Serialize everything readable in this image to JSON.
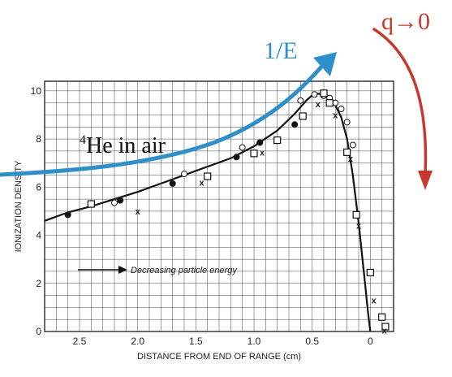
{
  "chart_data": {
    "type": "scatter",
    "xlabel": "DISTANCE FROM END OF RANGE (cm)",
    "ylabel": "IONIZATION DENSITY",
    "x_reversed": true,
    "xlim": [
      2.8,
      -0.2
    ],
    "ylim": [
      0,
      10.4
    ],
    "x_ticks": [
      {
        "v": 2.5,
        "label": "2.5"
      },
      {
        "v": 2.0,
        "label": "2.0"
      },
      {
        "v": 1.5,
        "label": "1.5"
      },
      {
        "v": 1.0,
        "label": "1.0"
      },
      {
        "v": 0.5,
        "label": "0.5"
      },
      {
        "v": 0.0,
        "label": "0"
      }
    ],
    "y_ticks": [
      {
        "v": 0,
        "label": "0"
      },
      {
        "v": 2,
        "label": "2"
      },
      {
        "v": 4,
        "label": "4"
      },
      {
        "v": 6,
        "label": "6"
      },
      {
        "v": 8,
        "label": "8"
      },
      {
        "v": 10,
        "label": "10"
      }
    ],
    "grid": true,
    "legend_text": "Decreasing particle energy",
    "series": [
      {
        "marker": "filled-circle",
        "x": [
          2.6,
          2.15,
          1.7,
          1.15,
          0.95,
          0.65
        ],
        "y": [
          4.85,
          5.45,
          6.15,
          7.25,
          7.85,
          8.6
        ]
      },
      {
        "marker": "open-circle",
        "x": [
          2.2,
          1.6,
          1.1,
          0.6,
          0.48,
          0.4,
          0.35,
          0.3,
          0.25,
          0.2,
          0.15
        ],
        "y": [
          5.35,
          6.55,
          7.65,
          9.6,
          9.85,
          9.8,
          9.7,
          9.5,
          9.25,
          8.7,
          7.75
        ]
      },
      {
        "marker": "open-square",
        "x": [
          2.4,
          1.4,
          1.0,
          0.8,
          0.58,
          0.4,
          0.35,
          0.2,
          0.12,
          0.0,
          -0.1,
          -0.13
        ],
        "y": [
          5.3,
          6.45,
          7.4,
          7.95,
          8.95,
          9.9,
          9.5,
          7.45,
          4.85,
          2.45,
          0.6,
          0.2
        ]
      },
      {
        "marker": "cross",
        "x": [
          2.0,
          1.45,
          0.93,
          0.45,
          0.3,
          0.17,
          0.1,
          -0.03,
          -0.12
        ],
        "y": [
          5.0,
          6.2,
          7.45,
          9.45,
          9.0,
          7.2,
          4.4,
          1.3,
          0.05
        ]
      }
    ],
    "curve": {
      "x": [
        2.8,
        2.6,
        2.4,
        2.2,
        2.0,
        1.8,
        1.6,
        1.4,
        1.2,
        1.0,
        0.8,
        0.65,
        0.55,
        0.48,
        0.4,
        0.35,
        0.3,
        0.25,
        0.2,
        0.15,
        0.1,
        0.05,
        0.02,
        0.0
      ],
      "y": [
        4.6,
        4.95,
        5.2,
        5.5,
        5.8,
        6.15,
        6.5,
        6.85,
        7.2,
        7.7,
        8.35,
        9.05,
        9.6,
        9.9,
        9.85,
        9.7,
        9.4,
        8.9,
        8.0,
        6.5,
        4.5,
        2.2,
        0.8,
        0.0
      ]
    }
  },
  "annotations": {
    "species_prefix": "4",
    "species_label": "He in air",
    "inverse_energy": "1/E",
    "limit_label": "q→0",
    "blue": "#2f8fca",
    "red": "#c8392d"
  }
}
